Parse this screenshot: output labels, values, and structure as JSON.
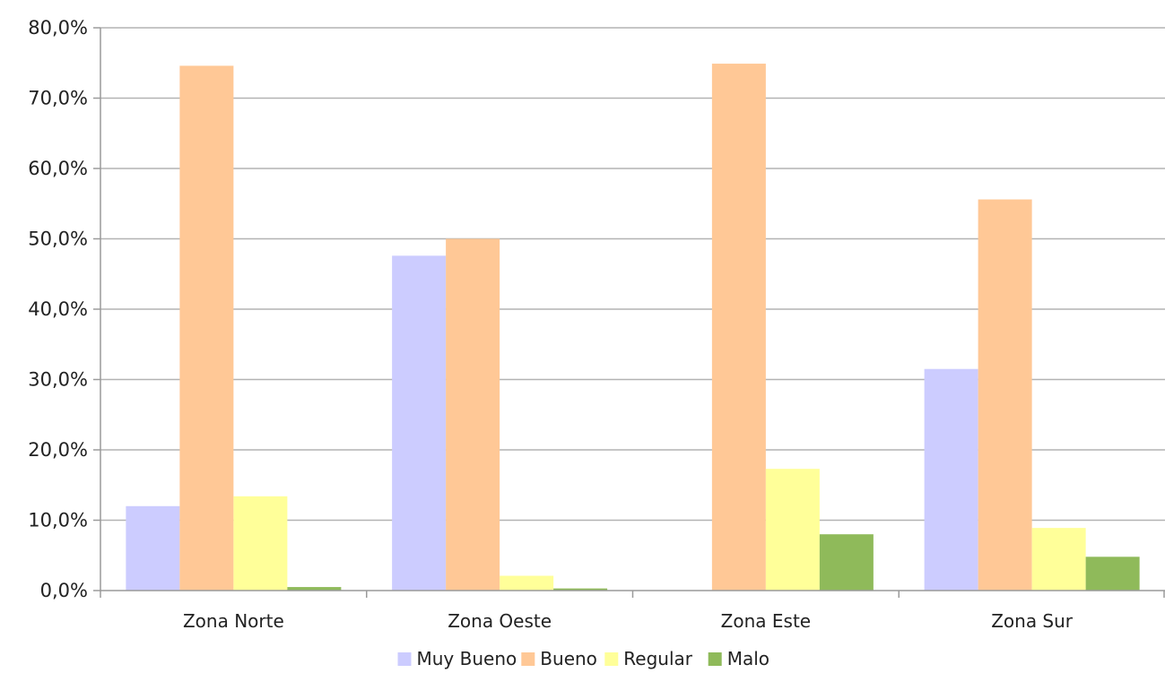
{
  "chart_data": {
    "type": "bar",
    "title": "",
    "xlabel": "",
    "ylabel": "",
    "ylim": [
      0,
      80
    ],
    "y_ticks": [
      "0,0%",
      "10,0%",
      "20,0%",
      "30,0%",
      "40,0%",
      "50,0%",
      "60,0%",
      "70,0%",
      "80,0%"
    ],
    "grid": true,
    "legend_position": "bottom",
    "categories": [
      "Zona Norte",
      "Zona Oeste",
      "Zona Este",
      "Zona Sur"
    ],
    "series": [
      {
        "name": "Muy Bueno",
        "color": "#ccccff",
        "values": [
          12.0,
          47.6,
          0.0,
          31.5
        ]
      },
      {
        "name": "Bueno",
        "color": "#ffc896",
        "values": [
          74.6,
          50.0,
          74.9,
          55.6
        ]
      },
      {
        "name": "Regular",
        "color": "#ffff99",
        "values": [
          13.4,
          2.1,
          17.3,
          8.9
        ]
      },
      {
        "name": "Malo",
        "color": "#8fba5a",
        "values": [
          0.5,
          0.3,
          8.0,
          4.8
        ]
      }
    ],
    "gridline_color": "#b3b3b3",
    "axis_color": "#9a9a9a"
  }
}
